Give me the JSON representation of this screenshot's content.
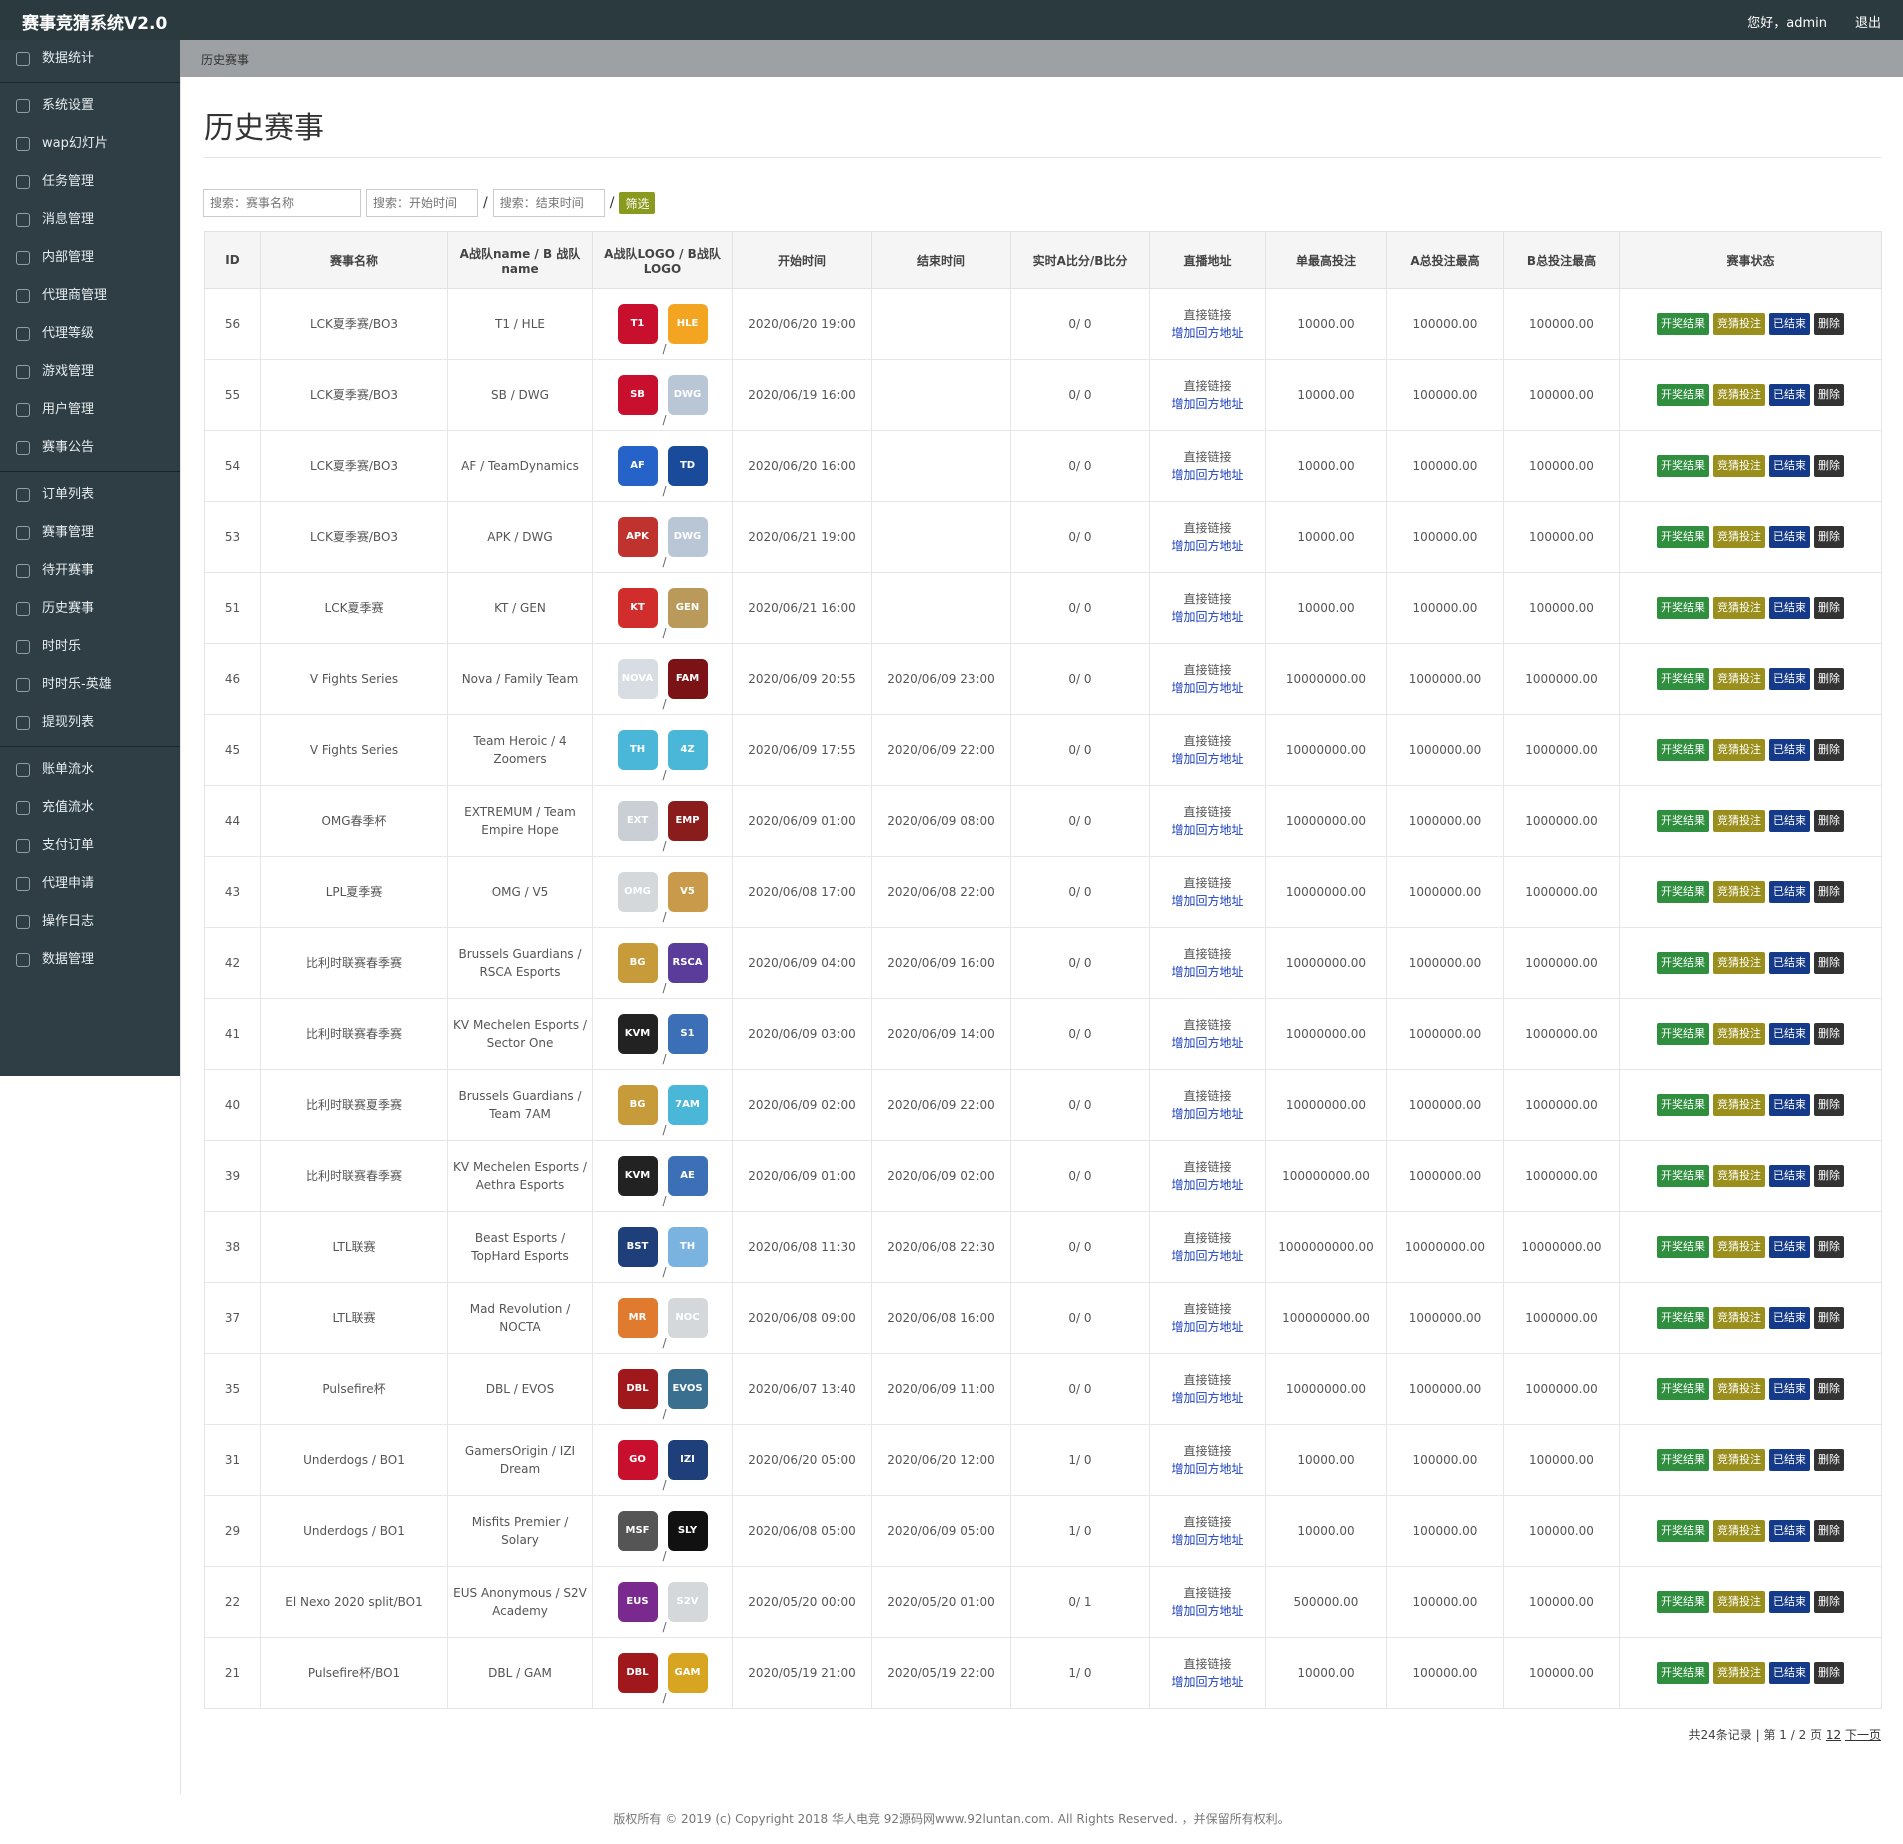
{
  "app": {
    "brand": "赛事竞猜系统V2.0",
    "greeting": "您好，admin",
    "logout": "退出"
  },
  "sidebar": {
    "group1": [
      {
        "label": "数据统计",
        "icon": "home-icon"
      }
    ],
    "group2": [
      {
        "label": "系统设置",
        "icon": "gear-icon"
      },
      {
        "label": "wap幻灯片",
        "icon": "gear-icon"
      },
      {
        "label": "任务管理",
        "icon": "gear-icon"
      },
      {
        "label": "消息管理",
        "icon": "gear-icon"
      },
      {
        "label": "内部管理",
        "icon": "user-icon"
      },
      {
        "label": "代理商管理",
        "icon": "user-icon"
      },
      {
        "label": "代理等级",
        "icon": "list-icon"
      },
      {
        "label": "游戏管理",
        "icon": "file-icon"
      },
      {
        "label": "用户管理",
        "icon": "users-icon"
      },
      {
        "label": "赛事公告",
        "icon": "list-icon"
      }
    ],
    "group3": [
      {
        "label": "订单列表",
        "icon": "refresh-icon"
      },
      {
        "label": "赛事管理",
        "icon": "list-icon"
      },
      {
        "label": "待开赛事",
        "icon": "list-icon"
      },
      {
        "label": "历史赛事",
        "icon": "list-icon"
      },
      {
        "label": "时时乐",
        "icon": "list-icon"
      },
      {
        "label": "时时乐-英雄",
        "icon": "list-icon"
      },
      {
        "label": "提现列表",
        "icon": "refresh-icon"
      }
    ],
    "group4": [
      {
        "label": "账单流水",
        "icon": "link-icon"
      },
      {
        "label": "充值流水",
        "icon": "link-icon"
      },
      {
        "label": "支付订单",
        "icon": "link-icon"
      },
      {
        "label": "代理申请",
        "icon": "grid-icon"
      },
      {
        "label": "操作日志",
        "icon": "square-icon"
      },
      {
        "label": "数据管理",
        "icon": "link-icon"
      }
    ]
  },
  "breadcrumb": "历史赛事",
  "page_title": "历史赛事",
  "search": {
    "name_placeholder": "搜索：赛事名称",
    "start_placeholder": "搜索：开始时间",
    "end_placeholder": "搜索：结束时间",
    "slash": "/",
    "filter_label": "筛选"
  },
  "table": {
    "headers": [
      "ID",
      "赛事名称",
      "A战队name / B 战队name",
      "A战队LOGO / B战队LOGO",
      "开始时间",
      "结束时间",
      "实时A比分/B比分",
      "直播地址",
      "单最高投注",
      "A总投注最高",
      "B总投注最高",
      "赛事状态"
    ],
    "live_label": "直接链接",
    "live_add": "增加回方地址",
    "actions": [
      "开奖结果",
      "竞猜投注",
      "已结束",
      "删除"
    ],
    "rows": [
      {
        "id": "56",
        "name": "LCK夏季赛/BO3",
        "teams": "T1 / HLE",
        "la": "T1",
        "lb": "HLE",
        "ca": "#c8102e",
        "cb": "#f3a521",
        "start": "2020/06/20 19:00",
        "end": "",
        "score": "0/ 0",
        "max": "10000.00",
        "amax": "100000.00",
        "bmax": "100000.00"
      },
      {
        "id": "55",
        "name": "LCK夏季赛/BO3",
        "teams": "SB / DWG",
        "la": "SB",
        "lb": "DWG",
        "ca": "#c8102e",
        "cb": "#b9c6d6",
        "start": "2020/06/19 16:00",
        "end": "",
        "score": "0/ 0",
        "max": "10000.00",
        "amax": "100000.00",
        "bmax": "100000.00"
      },
      {
        "id": "54",
        "name": "LCK夏季赛/BO3",
        "teams": "AF / TeamDynamics",
        "la": "AF",
        "lb": "TD",
        "ca": "#2563c9",
        "cb": "#1a4b9a",
        "start": "2020/06/20 16:00",
        "end": "",
        "score": "0/ 0",
        "max": "10000.00",
        "amax": "100000.00",
        "bmax": "100000.00"
      },
      {
        "id": "53",
        "name": "LCK夏季赛/BO3",
        "teams": "APK / DWG",
        "la": "APK",
        "lb": "DWG",
        "ca": "#c0322d",
        "cb": "#b9c6d6",
        "start": "2020/06/21 19:00",
        "end": "",
        "score": "0/ 0",
        "max": "10000.00",
        "amax": "100000.00",
        "bmax": "100000.00"
      },
      {
        "id": "51",
        "name": "LCK夏季赛",
        "teams": "KT / GEN",
        "la": "KT",
        "lb": "GEN",
        "ca": "#d22d2d",
        "cb": "#b99a5a",
        "start": "2020/06/21 16:00",
        "end": "",
        "score": "0/ 0",
        "max": "10000.00",
        "amax": "100000.00",
        "bmax": "100000.00"
      },
      {
        "id": "46",
        "name": "V Fights Series",
        "teams": "Nova / Family Team",
        "la": "NOVA",
        "lb": "FAM",
        "ca": "#d7dde2",
        "cb": "#7a1216",
        "start": "2020/06/09 20:55",
        "end": "2020/06/09 23:00",
        "score": "0/ 0",
        "max": "10000000.00",
        "amax": "1000000.00",
        "bmax": "1000000.00"
      },
      {
        "id": "45",
        "name": "V Fights Series",
        "teams": "Team Heroic / 4 Zoomers",
        "la": "TH",
        "lb": "4Z",
        "ca": "#4ab7d8",
        "cb": "#4ab7d8",
        "start": "2020/06/09 17:55",
        "end": "2020/06/09 22:00",
        "score": "0/ 0",
        "max": "10000000.00",
        "amax": "1000000.00",
        "bmax": "1000000.00"
      },
      {
        "id": "44",
        "name": "OMG春季杯",
        "teams": "EXTREMUM / Team Empire Hope",
        "la": "EXT",
        "lb": "EMP",
        "ca": "#c9cfd4",
        "cb": "#8b1c1c",
        "start": "2020/06/09 01:00",
        "end": "2020/06/09 08:00",
        "score": "0/ 0",
        "max": "10000000.00",
        "amax": "1000000.00",
        "bmax": "1000000.00"
      },
      {
        "id": "43",
        "name": "LPL夏季赛",
        "teams": "OMG / V5",
        "la": "OMG",
        "lb": "V5",
        "ca": "#d4d8db",
        "cb": "#c99a4a",
        "start": "2020/06/08 17:00",
        "end": "2020/06/08 22:00",
        "score": "0/ 0",
        "max": "10000000.00",
        "amax": "1000000.00",
        "bmax": "1000000.00"
      },
      {
        "id": "42",
        "name": "比利时联赛春季赛",
        "teams": "Brussels Guardians / RSCA Esports",
        "la": "BG",
        "lb": "RSCA",
        "ca": "#c79a3a",
        "cb": "#5a3c9a",
        "start": "2020/06/09 04:00",
        "end": "2020/06/09 16:00",
        "score": "0/ 0",
        "max": "10000000.00",
        "amax": "1000000.00",
        "bmax": "1000000.00"
      },
      {
        "id": "41",
        "name": "比利时联赛春季赛",
        "teams": "KV Mechelen Esports / Sector One",
        "la": "KVM",
        "lb": "S1",
        "ca": "#222222",
        "cb": "#3b6fb6",
        "start": "2020/06/09 03:00",
        "end": "2020/06/09 14:00",
        "score": "0/ 0",
        "max": "10000000.00",
        "amax": "1000000.00",
        "bmax": "1000000.00"
      },
      {
        "id": "40",
        "name": "比利时联赛夏季赛",
        "teams": "Brussels Guardians / Team 7AM",
        "la": "BG",
        "lb": "7AM",
        "ca": "#c79a3a",
        "cb": "#4ab7d8",
        "start": "2020/06/09 02:00",
        "end": "2020/06/09 22:00",
        "score": "0/ 0",
        "max": "10000000.00",
        "amax": "1000000.00",
        "bmax": "1000000.00"
      },
      {
        "id": "39",
        "name": "比利时联赛春季赛",
        "teams": "KV Mechelen Esports / Aethra Esports",
        "la": "KVM",
        "lb": "AE",
        "ca": "#222222",
        "cb": "#3b6fb6",
        "start": "2020/06/09 01:00",
        "end": "2020/06/09 02:00",
        "score": "0/ 0",
        "max": "100000000.00",
        "amax": "1000000.00",
        "bmax": "1000000.00"
      },
      {
        "id": "38",
        "name": "LTL联赛",
        "teams": "Beast Esports / TopHard Esports",
        "la": "BST",
        "lb": "TH",
        "ca": "#1f3f7a",
        "cb": "#7ab3e0",
        "start": "2020/06/08 11:30",
        "end": "2020/06/08 22:30",
        "score": "0/ 0",
        "max": "1000000000.00",
        "amax": "10000000.00",
        "bmax": "10000000.00"
      },
      {
        "id": "37",
        "name": "LTL联赛",
        "teams": "Mad Revolution / NOCTA",
        "la": "MR",
        "lb": "NOC",
        "ca": "#e07a2e",
        "cb": "#d4d8db",
        "start": "2020/06/08 09:00",
        "end": "2020/06/08 16:00",
        "score": "0/ 0",
        "max": "100000000.00",
        "amax": "1000000.00",
        "bmax": "1000000.00"
      },
      {
        "id": "35",
        "name": "Pulsefire杯",
        "teams": "DBL / EVOS",
        "la": "DBL",
        "lb": "EVOS",
        "ca": "#a0181c",
        "cb": "#3a6f8f",
        "start": "2020/06/07 13:40",
        "end": "2020/06/09 11:00",
        "score": "0/ 0",
        "max": "10000000.00",
        "amax": "1000000.00",
        "bmax": "1000000.00"
      },
      {
        "id": "31",
        "name": "Underdogs / BO1",
        "teams": "GamersOrigin / IZI Dream",
        "la": "GO",
        "lb": "IZI",
        "ca": "#c8102e",
        "cb": "#1f3f7a",
        "start": "2020/06/20 05:00",
        "end": "2020/06/20 12:00",
        "score": "1/ 0",
        "max": "10000.00",
        "amax": "100000.00",
        "bmax": "100000.00"
      },
      {
        "id": "29",
        "name": "Underdogs / BO1",
        "teams": "Misfits Premier / Solary",
        "la": "MSF",
        "lb": "SLY",
        "ca": "#555555",
        "cb": "#111111",
        "start": "2020/06/08 05:00",
        "end": "2020/06/09 05:00",
        "score": "1/ 0",
        "max": "10000.00",
        "amax": "100000.00",
        "bmax": "100000.00"
      },
      {
        "id": "22",
        "name": "El Nexo 2020 split/BO1",
        "teams": "EUS Anonymous / S2V Academy",
        "la": "EUS",
        "lb": "S2V",
        "ca": "#7a2a8f",
        "cb": "#d4d8db",
        "start": "2020/05/20 00:00",
        "end": "2020/05/20 01:00",
        "score": "0/ 1",
        "max": "500000.00",
        "amax": "100000.00",
        "bmax": "100000.00"
      },
      {
        "id": "21",
        "name": "Pulsefire杯/BO1",
        "teams": "DBL / GAM",
        "la": "DBL",
        "lb": "GAM",
        "ca": "#a0181c",
        "cb": "#d7a520",
        "start": "2020/05/19 21:00",
        "end": "2020/05/19 22:00",
        "score": "1/ 0",
        "max": "10000.00",
        "amax": "100000.00",
        "bmax": "100000.00"
      }
    ]
  },
  "pager": {
    "summary": "共24条记录 | 第 1 / 2 页",
    "page1": "1",
    "page2": "2",
    "next": "下一页"
  },
  "footer": "版权所有 © 2019 (c) Copyright 2018 华人电竞 92源码网www.92luntan.com. All Rights Reserved. ，并保留所有权利。",
  "colors": {
    "topbar": "#2b3a3f",
    "sidebar": "#2e3e44",
    "green": "#2f8f3f",
    "olive": "#9a8f1c",
    "blue": "#153a8a",
    "dark": "#333333"
  }
}
